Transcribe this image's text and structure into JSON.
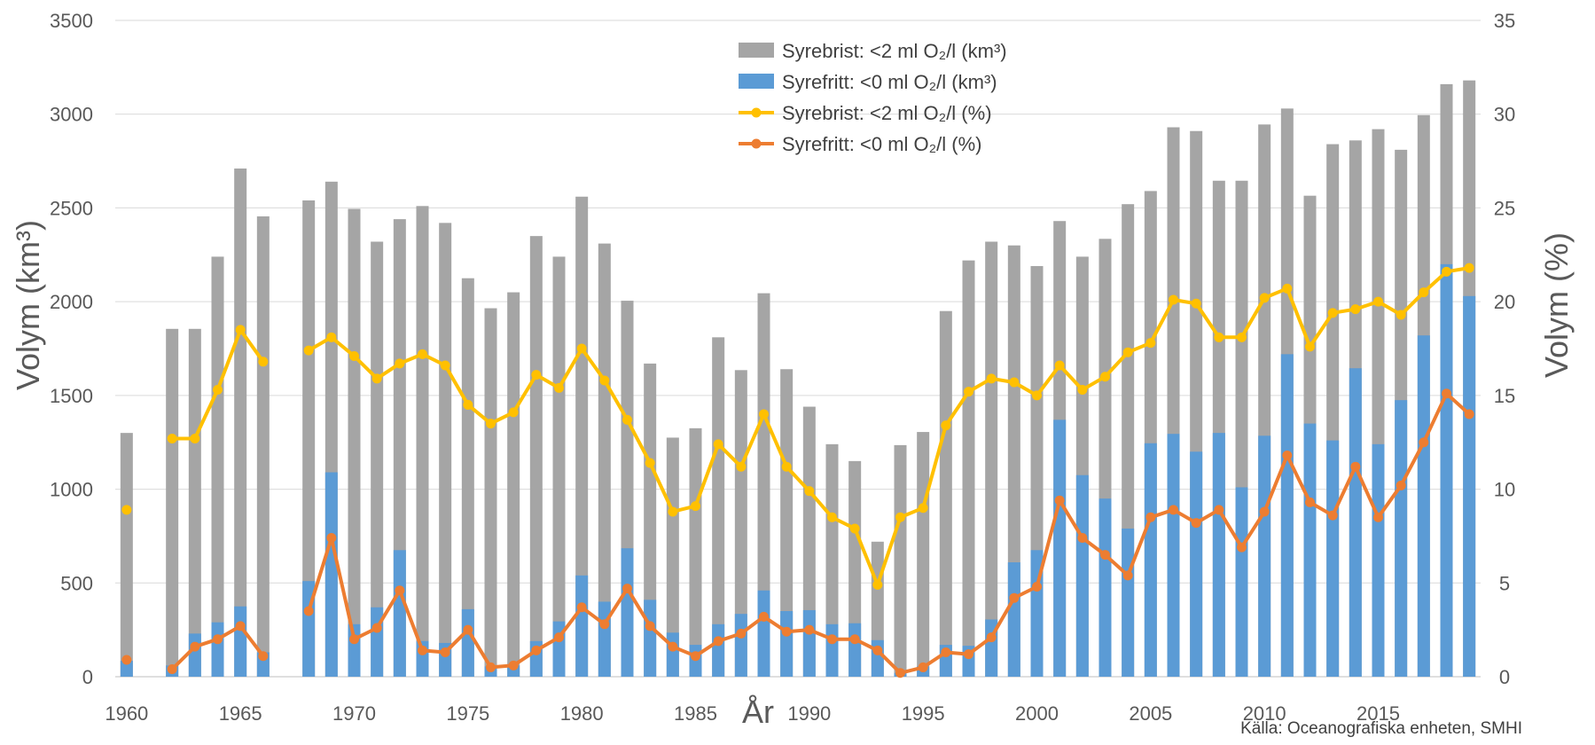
{
  "chart_data": {
    "type": "bar",
    "title": "",
    "xlabel": "År",
    "ylabel_left": "Volym (km³)",
    "ylabel_right": "Volym (%)",
    "y_left_lim": [
      0,
      3500
    ],
    "y_right_lim": [
      0,
      35
    ],
    "y_left_ticks": [
      "0",
      "500",
      "1000",
      "1500",
      "2000",
      "2500",
      "3000",
      "3500"
    ],
    "y_right_ticks": [
      "0",
      "5",
      "10",
      "15",
      "20",
      "25",
      "30",
      "35"
    ],
    "x_range": [
      1960,
      2019
    ],
    "x_ticks": [
      "1960",
      "1965",
      "1970",
      "1975",
      "1980",
      "1985",
      "1990",
      "1995",
      "2000",
      "2005",
      "2010",
      "2015"
    ],
    "grid": "horizontal",
    "legend_position": "top-center",
    "source": "Källa: Oceanografiska enheten, SMHI",
    "years": [
      1960,
      1961,
      1962,
      1963,
      1964,
      1965,
      1966,
      1967,
      1968,
      1969,
      1970,
      1971,
      1972,
      1973,
      1974,
      1975,
      1976,
      1977,
      1978,
      1979,
      1980,
      1981,
      1982,
      1983,
      1984,
      1985,
      1986,
      1987,
      1988,
      1989,
      1990,
      1991,
      1992,
      1993,
      1994,
      1995,
      1996,
      1997,
      1998,
      1999,
      2000,
      2001,
      2002,
      2003,
      2004,
      2005,
      2006,
      2007,
      2008,
      2009,
      2010,
      2011,
      2012,
      2013,
      2014,
      2015,
      2016,
      2017,
      2018,
      2019
    ],
    "series": [
      {
        "name": "Syrebrist: <2 ml O₂/l (km³)",
        "kind": "bar",
        "axis": "left",
        "color": "#a5a5a5",
        "values": [
          1300,
          null,
          1855,
          1855,
          2240,
          2710,
          2455,
          null,
          2540,
          2640,
          2495,
          2320,
          2440,
          2510,
          2420,
          2125,
          1965,
          2050,
          2350,
          2240,
          2560,
          2310,
          2005,
          1670,
          1275,
          1325,
          1810,
          1635,
          2045,
          1640,
          1440,
          1240,
          1150,
          720,
          1235,
          1305,
          1950,
          2220,
          2320,
          2300,
          2190,
          2430,
          2240,
          2335,
          2520,
          2590,
          2930,
          2910,
          2645,
          2645,
          2945,
          3030,
          2565,
          2840,
          2860,
          2920,
          2810,
          2995,
          3160,
          3180
        ]
      },
      {
        "name": "Syrefritt: <0 ml O₂/l (km³)",
        "kind": "bar",
        "axis": "left",
        "color": "#5b9bd5",
        "values": [
          85,
          null,
          60,
          230,
          290,
          375,
          130,
          null,
          510,
          1090,
          280,
          370,
          675,
          190,
          180,
          360,
          55,
          60,
          190,
          295,
          540,
          400,
          685,
          410,
          235,
          170,
          280,
          335,
          460,
          350,
          355,
          280,
          285,
          195,
          20,
          55,
          170,
          165,
          305,
          610,
          675,
          1370,
          1075,
          950,
          790,
          1245,
          1295,
          1200,
          1300,
          1010,
          1285,
          1720,
          1350,
          1260,
          1645,
          1240,
          1475,
          1820,
          2200,
          2030
        ]
      },
      {
        "name": "Syrebrist: <2 ml O₂/l (%)",
        "kind": "line",
        "axis": "right",
        "color": "#ffc000",
        "values": [
          8.9,
          null,
          12.7,
          12.7,
          15.3,
          18.5,
          16.8,
          null,
          17.4,
          18.1,
          17.1,
          15.9,
          16.7,
          17.2,
          16.6,
          14.5,
          13.5,
          14.1,
          16.1,
          15.4,
          17.5,
          15.8,
          13.7,
          11.4,
          8.8,
          9.1,
          12.4,
          11.2,
          14.0,
          11.2,
          9.9,
          8.5,
          7.9,
          4.9,
          8.5,
          9.0,
          13.4,
          15.2,
          15.9,
          15.7,
          15.0,
          16.6,
          15.3,
          16.0,
          17.3,
          17.8,
          20.1,
          19.9,
          18.1,
          18.1,
          20.2,
          20.7,
          17.6,
          19.4,
          19.6,
          20.0,
          19.3,
          20.5,
          21.6,
          21.8
        ]
      },
      {
        "name": "Syrefritt: <0 ml O₂/l (%)",
        "kind": "line",
        "axis": "right",
        "color": "#ed7d31",
        "values": [
          0.9,
          null,
          0.4,
          1.6,
          2.0,
          2.7,
          1.1,
          null,
          3.5,
          7.4,
          2.0,
          2.6,
          4.6,
          1.4,
          1.3,
          2.5,
          0.5,
          0.6,
          1.4,
          2.1,
          3.7,
          2.8,
          4.7,
          2.7,
          1.6,
          1.1,
          1.9,
          2.3,
          3.2,
          2.4,
          2.5,
          2.0,
          2.0,
          1.4,
          0.2,
          0.5,
          1.3,
          1.2,
          2.1,
          4.2,
          4.8,
          9.4,
          7.4,
          6.5,
          5.4,
          8.5,
          8.9,
          8.2,
          8.9,
          6.9,
          8.8,
          11.8,
          9.3,
          8.6,
          11.2,
          8.5,
          10.2,
          12.5,
          15.1,
          14.0
        ]
      }
    ]
  }
}
